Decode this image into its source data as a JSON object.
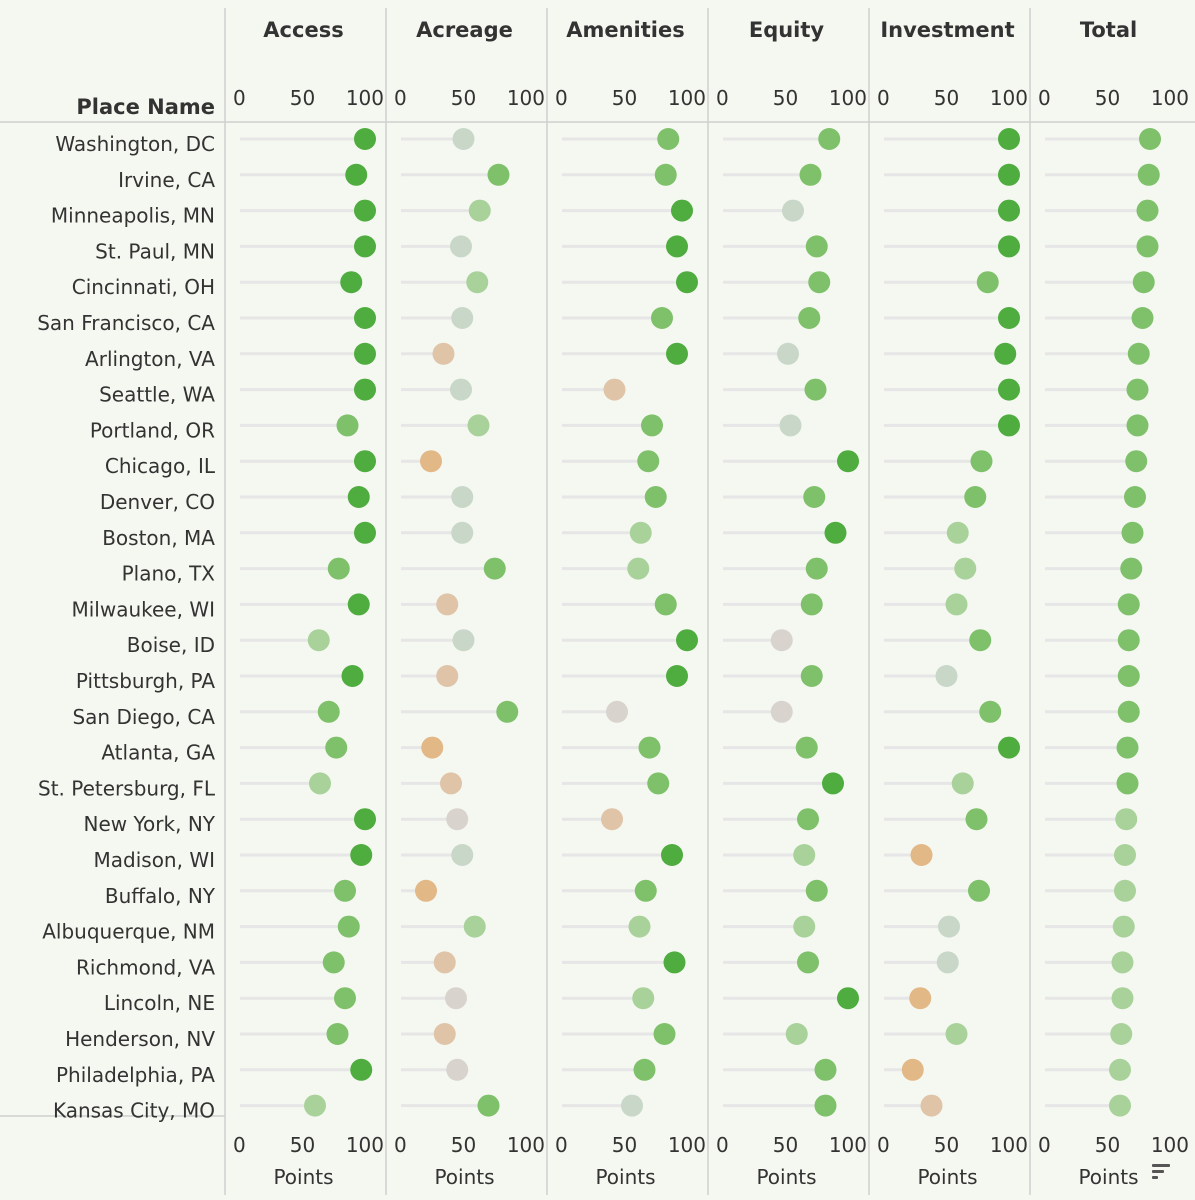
{
  "chart_data": {
    "type": "scatter",
    "row_header": "Place Name",
    "metrics": [
      "Access",
      "Acreage",
      "Amenities",
      "Equity",
      "Investment",
      "Total"
    ],
    "axis_label": "Points",
    "xlim": [
      0,
      100
    ],
    "ticks": [
      0,
      50,
      100
    ],
    "colors": {
      "very_high": "#4fac3f",
      "high": "#7fc16b",
      "mid_high": "#a9d29b",
      "neutral": "#c8d7c8",
      "low_neutral": "#d9d3cd",
      "low": "#e0c4a8",
      "very_low": "#e3b887",
      "stem": "#e6e6e6"
    },
    "places": [
      {
        "name": "Washington, DC",
        "values": [
          100,
          50,
          85,
          85,
          100,
          84
        ]
      },
      {
        "name": "Irvine, CA",
        "values": [
          93,
          78,
          83,
          70,
          100,
          83
        ]
      },
      {
        "name": "Minneapolis, MN",
        "values": [
          100,
          63,
          96,
          56,
          100,
          82
        ]
      },
      {
        "name": "St. Paul, MN",
        "values": [
          100,
          48,
          92,
          75,
          100,
          82
        ]
      },
      {
        "name": "Cincinnati, OH",
        "values": [
          89,
          61,
          100,
          77,
          83,
          79
        ]
      },
      {
        "name": "San Francisco, CA",
        "values": [
          100,
          49,
          80,
          69,
          100,
          78
        ]
      },
      {
        "name": "Arlington, VA",
        "values": [
          100,
          34,
          92,
          52,
          97,
          75
        ]
      },
      {
        "name": "Seattle, WA",
        "values": [
          100,
          48,
          42,
          74,
          100,
          74
        ]
      },
      {
        "name": "Portland, OR",
        "values": [
          86,
          62,
          72,
          54,
          100,
          74
        ]
      },
      {
        "name": "Chicago, IL",
        "values": [
          100,
          24,
          69,
          100,
          78,
          73
        ]
      },
      {
        "name": "Denver, CO",
        "values": [
          95,
          49,
          75,
          73,
          73,
          72
        ]
      },
      {
        "name": "Boston, MA",
        "values": [
          100,
          49,
          63,
          90,
          59,
          70
        ]
      },
      {
        "name": "Plano, TX",
        "values": [
          79,
          75,
          61,
          75,
          65,
          69
        ]
      },
      {
        "name": "Milwaukee, WI",
        "values": [
          95,
          37,
          83,
          71,
          58,
          67
        ]
      },
      {
        "name": "Boise, ID",
        "values": [
          63,
          50,
          100,
          47,
          77,
          67
        ]
      },
      {
        "name": "Pittsburgh, PA",
        "values": [
          90,
          37,
          92,
          71,
          50,
          67
        ]
      },
      {
        "name": "San Diego, CA",
        "values": [
          71,
          85,
          44,
          47,
          85,
          67
        ]
      },
      {
        "name": "Atlanta, GA",
        "values": [
          77,
          25,
          70,
          67,
          100,
          66
        ]
      },
      {
        "name": "St. Petersburg, FL",
        "values": [
          64,
          40,
          77,
          88,
          63,
          66
        ]
      },
      {
        "name": "New York, NY",
        "values": [
          100,
          45,
          40,
          68,
          74,
          65
        ]
      },
      {
        "name": "Madison, WI",
        "values": [
          97,
          49,
          88,
          65,
          30,
          64
        ]
      },
      {
        "name": "Buffalo, NY",
        "values": [
          84,
          20,
          67,
          75,
          76,
          64
        ]
      },
      {
        "name": "Albuquerque, NM",
        "values": [
          87,
          59,
          62,
          65,
          52,
          63
        ]
      },
      {
        "name": "Richmond, VA",
        "values": [
          75,
          35,
          90,
          68,
          51,
          62
        ]
      },
      {
        "name": "Lincoln, NE",
        "values": [
          84,
          44,
          65,
          100,
          29,
          62
        ]
      },
      {
        "name": "Henderson, NV",
        "values": [
          78,
          35,
          82,
          59,
          58,
          61
        ]
      },
      {
        "name": "Philadelphia, PA",
        "values": [
          97,
          45,
          66,
          82,
          23,
          60
        ]
      },
      {
        "name": "Kansas City, MO",
        "values": [
          60,
          70,
          56,
          82,
          38,
          60
        ]
      }
    ]
  }
}
